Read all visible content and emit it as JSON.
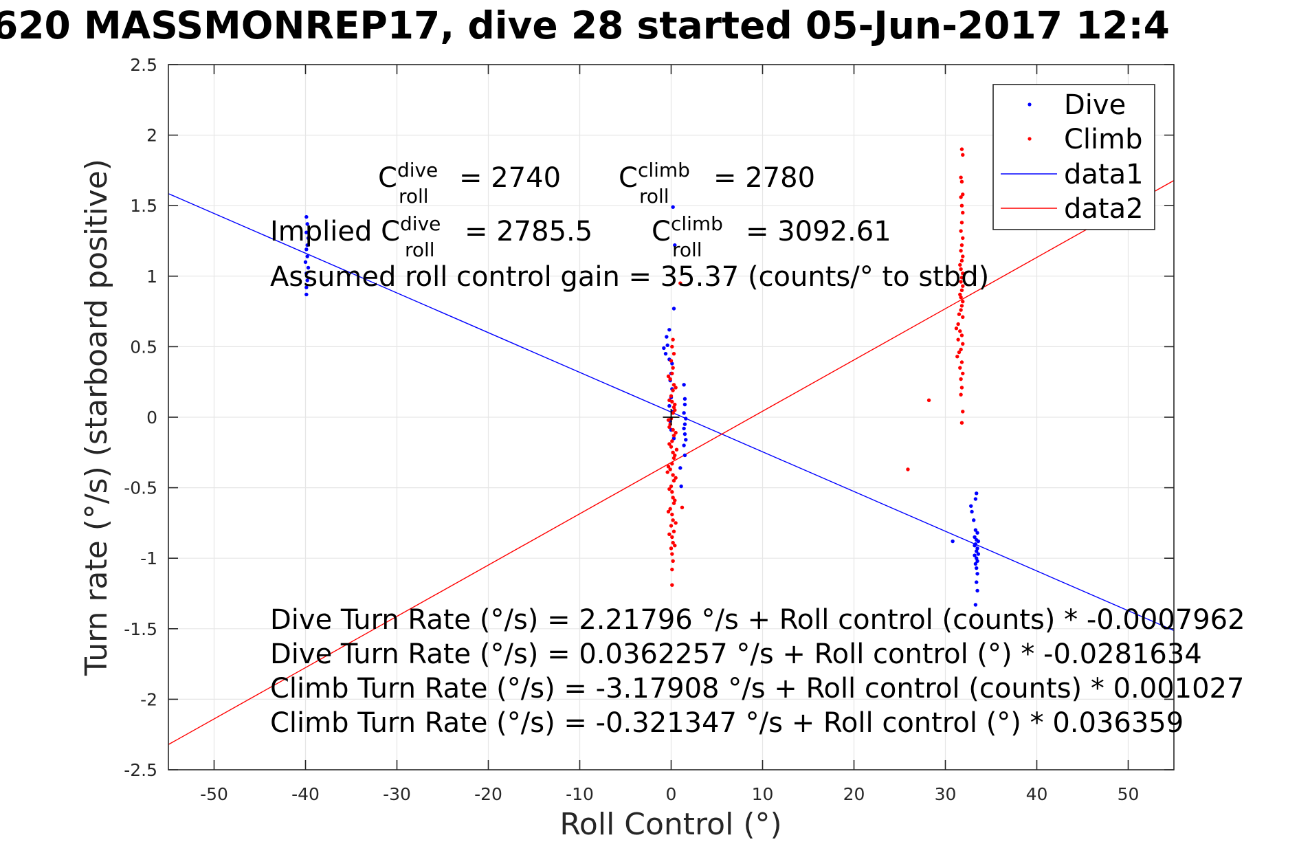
{
  "figure": {
    "title": "620 MASSMONREP17, dive 28 started 05-Jun-2017 12:4",
    "annotations": {
      "line1": {
        "c_dive": {
          "base": "C",
          "sup": "dive",
          "sub": "roll",
          "rest": "= 2740"
        },
        "c_climb": {
          "base": "C",
          "sup": "climb",
          "sub": "roll",
          "rest": "= 2780"
        }
      },
      "line2": {
        "prefix": "Implied C",
        "c_dive": {
          "sup": "dive",
          "sub": "roll",
          "rest": "= 2785.5"
        },
        "c_climb": {
          "base": "C",
          "sup": "climb",
          "sub": "roll",
          "rest": "= 3092.61"
        }
      },
      "gain": "Assumed roll control gain = 35.37 (counts/° to stbd)",
      "equations": [
        "Dive Turn Rate (°/s) = 2.21796 °/s + Roll control (counts) * -0.0007962",
        "Dive Turn Rate (°/s) = 0.0362257 °/s + Roll control (°) * -0.0281634",
        "Climb Turn Rate (°/s) = -3.17908 °/s + Roll control (counts) * 0.001027",
        "Climb Turn Rate (°/s) = -0.321347 °/s + Roll control (°) * 0.036359"
      ]
    }
  },
  "colors": {
    "dive": "#0000ff",
    "climb": "#ff0000",
    "axis": "#262626",
    "grid": "#e6e6e6"
  },
  "chart_data": {
    "type": "scatter",
    "xlabel": "Roll Control (°)",
    "ylabel": "Turn rate (°/s) (starboard positive)",
    "xlim": [
      -55,
      55
    ],
    "ylim": [
      -2.5,
      2.5
    ],
    "xticks": [
      -50,
      -40,
      -30,
      -20,
      -10,
      0,
      10,
      20,
      30,
      40,
      50
    ],
    "yticks": [
      -2.5,
      -2,
      -1.5,
      -1,
      -0.5,
      0,
      0.5,
      1,
      1.5,
      2,
      2.5
    ],
    "grid": true,
    "legend": "top-right",
    "marker": {
      "x": 0,
      "y": 0
    },
    "series": [
      {
        "name": "Dive",
        "kind": "points",
        "points": [
          [
            -39.9,
            1.42
          ],
          [
            -39.8,
            1.37
          ],
          [
            -39.9,
            1.31
          ],
          [
            -39.7,
            1.27
          ],
          [
            -39.8,
            1.22
          ],
          [
            -39.9,
            1.19
          ],
          [
            -39.8,
            1.14
          ],
          [
            -40.0,
            1.1
          ],
          [
            -39.7,
            1.06
          ],
          [
            -39.9,
            1.02
          ],
          [
            -39.8,
            0.97
          ],
          [
            -39.9,
            0.92
          ],
          [
            -39.9,
            0.87
          ],
          [
            0.2,
            1.49
          ],
          [
            0.4,
            1.22
          ],
          [
            0.3,
            0.77
          ],
          [
            -0.2,
            0.62
          ],
          [
            -0.5,
            0.57
          ],
          [
            -0.4,
            0.51
          ],
          [
            -0.8,
            0.49
          ],
          [
            -0.6,
            0.45
          ],
          [
            -0.2,
            0.41
          ],
          [
            0.1,
            0.38
          ],
          [
            0.0,
            0.31
          ],
          [
            -0.1,
            0.26
          ],
          [
            0.1,
            0.2
          ],
          [
            0.0,
            0.14
          ],
          [
            -0.2,
            0.08
          ],
          [
            0.2,
            0.04
          ],
          [
            -0.1,
            -0.03
          ],
          [
            0.0,
            -0.09
          ],
          [
            0.3,
            -0.15
          ],
          [
            1.4,
            0.23
          ],
          [
            1.5,
            0.13
          ],
          [
            1.5,
            0.09
          ],
          [
            1.4,
            0.03
          ],
          [
            1.6,
            -0.01
          ],
          [
            1.5,
            -0.05
          ],
          [
            1.4,
            -0.08
          ],
          [
            1.5,
            -0.12
          ],
          [
            1.6,
            -0.16
          ],
          [
            1.4,
            -0.2
          ],
          [
            1.5,
            -0.27
          ],
          [
            1.0,
            -0.36
          ],
          [
            1.1,
            -0.49
          ],
          [
            33.4,
            -0.54
          ],
          [
            33.3,
            -0.58
          ],
          [
            32.8,
            -0.63
          ],
          [
            32.9,
            -0.67
          ],
          [
            33.1,
            -0.73
          ],
          [
            33.3,
            -0.8
          ],
          [
            33.5,
            -0.82
          ],
          [
            33.2,
            -0.85
          ],
          [
            33.4,
            -0.87
          ],
          [
            33.6,
            -0.88
          ],
          [
            33.3,
            -0.9
          ],
          [
            33.2,
            -0.91
          ],
          [
            33.5,
            -0.93
          ],
          [
            33.4,
            -0.95
          ],
          [
            33.6,
            -0.97
          ],
          [
            33.2,
            -0.98
          ],
          [
            33.4,
            -1.0
          ],
          [
            33.5,
            -1.02
          ],
          [
            33.3,
            -1.04
          ],
          [
            33.4,
            -1.07
          ],
          [
            33.5,
            -1.11
          ],
          [
            33.4,
            -1.17
          ],
          [
            33.5,
            -1.23
          ],
          [
            33.3,
            -1.33
          ],
          [
            30.8,
            -0.88
          ]
        ]
      },
      {
        "name": "Climb",
        "kind": "points",
        "points": [
          [
            31.8,
            1.9
          ],
          [
            31.9,
            1.86
          ],
          [
            31.7,
            1.7
          ],
          [
            31.8,
            1.67
          ],
          [
            31.9,
            1.58
          ],
          [
            31.7,
            1.56
          ],
          [
            31.8,
            1.5
          ],
          [
            31.9,
            1.45
          ],
          [
            31.8,
            1.38
          ],
          [
            31.7,
            1.32
          ],
          [
            31.9,
            1.27
          ],
          [
            31.8,
            1.22
          ],
          [
            31.7,
            1.18
          ],
          [
            31.9,
            1.14
          ],
          [
            31.8,
            1.11
          ],
          [
            31.6,
            1.08
          ],
          [
            31.7,
            1.05
          ],
          [
            31.9,
            1.02
          ],
          [
            31.8,
            0.99
          ],
          [
            31.7,
            0.96
          ],
          [
            31.9,
            0.93
          ],
          [
            31.8,
            0.9
          ],
          [
            31.6,
            0.87
          ],
          [
            31.7,
            0.85
          ],
          [
            31.9,
            0.82
          ],
          [
            31.8,
            0.79
          ],
          [
            31.7,
            0.76
          ],
          [
            31.5,
            0.73
          ],
          [
            31.9,
            0.71
          ],
          [
            31.4,
            0.66
          ],
          [
            31.2,
            0.63
          ],
          [
            31.6,
            0.61
          ],
          [
            31.8,
            0.58
          ],
          [
            31.4,
            0.55
          ],
          [
            31.9,
            0.52
          ],
          [
            31.7,
            0.48
          ],
          [
            31.5,
            0.46
          ],
          [
            31.3,
            0.43
          ],
          [
            31.8,
            0.39
          ],
          [
            31.6,
            0.35
          ],
          [
            31.9,
            0.31
          ],
          [
            31.7,
            0.27
          ],
          [
            31.8,
            0.21
          ],
          [
            31.7,
            0.16
          ],
          [
            31.9,
            0.04
          ],
          [
            31.8,
            -0.04
          ],
          [
            28.2,
            0.12
          ],
          [
            25.9,
            -0.37
          ],
          [
            1.0,
            0.95
          ],
          [
            1.2,
            -0.64
          ],
          [
            0.2,
            0.55
          ],
          [
            0.1,
            0.5
          ],
          [
            0.3,
            0.45
          ],
          [
            0.0,
            0.4
          ],
          [
            0.2,
            0.35
          ],
          [
            0.1,
            0.31
          ],
          [
            -0.1,
            0.27
          ],
          [
            0.3,
            0.23
          ],
          [
            0.2,
            0.19
          ],
          [
            0.0,
            0.15
          ],
          [
            0.1,
            0.11
          ],
          [
            0.3,
            0.07
          ],
          [
            0.2,
            0.03
          ],
          [
            0.0,
            -0.01
          ],
          [
            -0.1,
            -0.05
          ],
          [
            0.2,
            -0.09
          ],
          [
            0.3,
            -0.13
          ],
          [
            0.1,
            -0.17
          ],
          [
            0.0,
            -0.21
          ],
          [
            0.2,
            -0.25
          ],
          [
            0.3,
            -0.29
          ],
          [
            0.1,
            -0.33
          ],
          [
            -0.1,
            -0.37
          ],
          [
            0.2,
            -0.41
          ],
          [
            0.3,
            -0.45
          ],
          [
            0.0,
            -0.49
          ],
          [
            0.1,
            -0.53
          ],
          [
            0.2,
            -0.57
          ],
          [
            0.3,
            -0.61
          ],
          [
            -0.1,
            -0.65
          ],
          [
            0.1,
            -0.69
          ],
          [
            0.2,
            -0.73
          ],
          [
            0.0,
            -0.77
          ],
          [
            0.3,
            -0.81
          ],
          [
            0.1,
            -0.85
          ],
          [
            0.2,
            -0.89
          ],
          [
            0.0,
            -0.93
          ],
          [
            0.1,
            -0.97
          ],
          [
            0.2,
            -1.02
          ],
          [
            0.1,
            -1.08
          ],
          [
            0.1,
            -1.19
          ],
          [
            -0.2,
            0.12
          ],
          [
            0.4,
            0.05
          ],
          [
            -0.3,
            -0.02
          ],
          [
            0.5,
            -0.11
          ],
          [
            -0.2,
            -0.19
          ],
          [
            0.4,
            -0.27
          ],
          [
            -0.3,
            -0.35
          ],
          [
            0.5,
            -0.43
          ],
          [
            -0.2,
            -0.51
          ],
          [
            0.4,
            -0.59
          ],
          [
            -0.3,
            -0.67
          ],
          [
            0.5,
            -0.75
          ],
          [
            -0.2,
            -0.83
          ],
          [
            0.4,
            -0.91
          ],
          [
            0.5,
            0.21
          ],
          [
            -0.3,
            0.29
          ],
          [
            0.4,
            0.09
          ],
          [
            -0.2,
            -0.07
          ],
          [
            0.6,
            -0.23
          ],
          [
            -0.4,
            -0.39
          ]
        ]
      },
      {
        "name": "data1",
        "kind": "line",
        "x": [
          -55,
          55
        ],
        "y": [
          1.5852,
          -1.5128
        ]
      },
      {
        "name": "data2",
        "kind": "line",
        "x": [
          -55,
          55
        ],
        "y": [
          -2.3211,
          1.6784
        ]
      }
    ]
  }
}
